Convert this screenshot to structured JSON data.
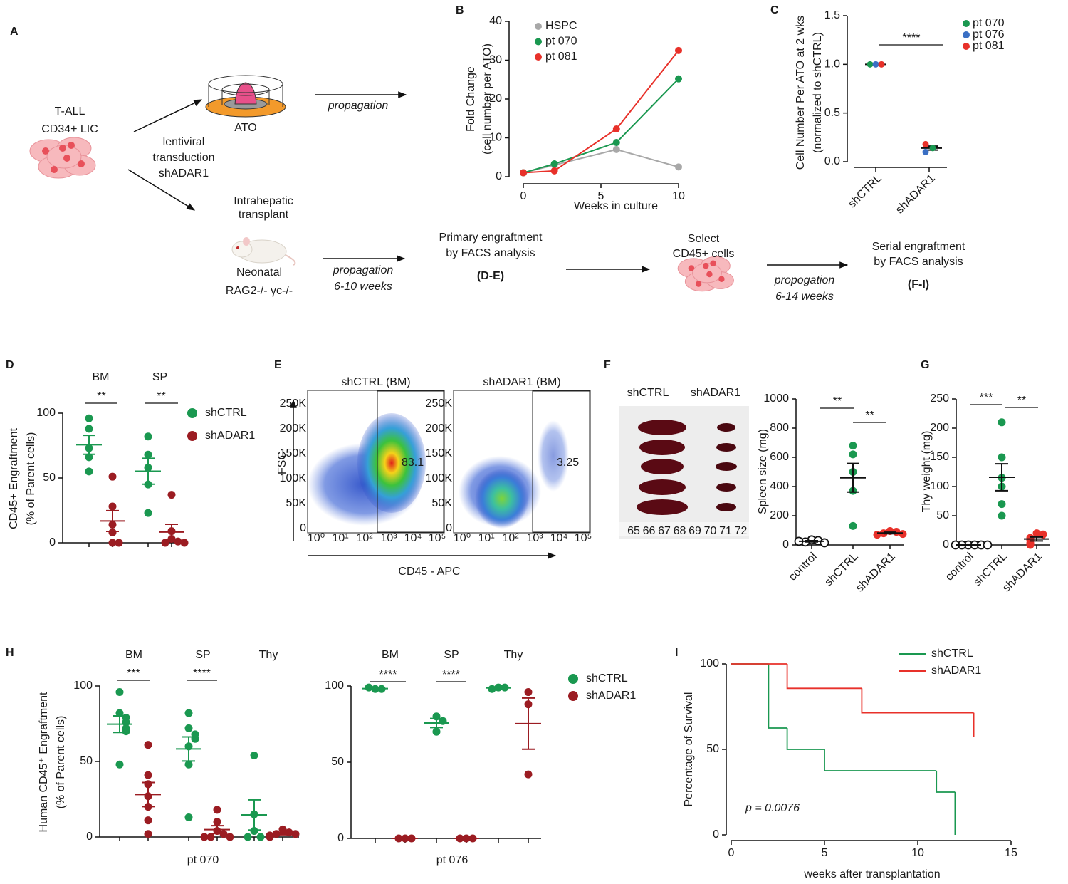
{
  "panel_labels": [
    "A",
    "B",
    "C",
    "D",
    "E",
    "F",
    "G",
    "H",
    "I"
  ],
  "diagram": {
    "start": [
      "T-ALL",
      "CD34+ LIC"
    ],
    "transduction": [
      "lentiviral",
      "transduction",
      "shADAR1"
    ],
    "ato": "ATO",
    "ato_arrow": "propagation",
    "transplant": [
      "Intrahepatic",
      "transplant"
    ],
    "mouse": [
      "Neonatal",
      "RAG2-/-  γc-/-"
    ],
    "mouse_arrow": [
      "propagation",
      "6-10 weeks"
    ],
    "primary": [
      "Primary engraftment",
      "by FACS analysis",
      "(D-E)"
    ],
    "select": [
      "Select",
      "CD45+ cells"
    ],
    "serial_arrow": [
      "propogation",
      "6-14 weeks"
    ],
    "serial": [
      "Serial engraftment",
      "by FACS analysis",
      "(F-I)"
    ]
  },
  "facs": {
    "plots": [
      {
        "title": "shCTRL (BM)",
        "gate": 83.1
      },
      {
        "title": "shADAR1 (BM)",
        "gate": 3.25
      }
    ],
    "ylabel": "FSC",
    "xlabel": "CD45 - APC",
    "yticks": [
      "250K",
      "200K",
      "150K",
      "100K",
      "50K",
      "0"
    ],
    "xticks": [
      "10⁰",
      "10¹",
      "10²",
      "10³",
      "10⁴",
      "10⁵"
    ]
  },
  "photo": {
    "labels": [
      "shCTRL",
      "shADAR1"
    ],
    "ruler": [
      "65",
      "66",
      "67",
      "68",
      "69",
      "70",
      "71",
      "72"
    ]
  },
  "chart_data": [
    {
      "type": "line",
      "xlabel": "Weeks in culture",
      "ylabel": [
        "Fold Change",
        "(cell number per ATO)"
      ],
      "x": [
        0,
        2,
        6,
        10
      ],
      "xlim": [
        0,
        10
      ],
      "xticks": [
        0,
        5,
        10
      ],
      "ylim": [
        0,
        40
      ],
      "yticks": [
        0,
        10,
        20,
        30,
        40
      ],
      "series": [
        {
          "name": "HSPC",
          "color": "#a8a8a8",
          "values": [
            1,
            3,
            7,
            2.5
          ]
        },
        {
          "name": "pt 070",
          "color": "#1a9850",
          "values": [
            1,
            3.3,
            8.8,
            25.2
          ]
        },
        {
          "name": "pt 081",
          "color": "#e8312a",
          "values": [
            1,
            1.5,
            12.3,
            32.5
          ]
        }
      ]
    },
    {
      "type": "strip",
      "ylabel": [
        "Cell Number Per ATO at 2 wks",
        "(normalized to shCTRL)"
      ],
      "categories": [
        "shCTRL",
        "shADAR1"
      ],
      "ylim": [
        0,
        1.5
      ],
      "yticks": [
        {
          "value": 0,
          "label": "0.0"
        },
        0.5,
        {
          "value": 1,
          "label": "1.0"
        },
        1.5
      ],
      "series": [
        {
          "name": "pt 070",
          "color": "#1a9850",
          "values": [
            1,
            0.14
          ]
        },
        {
          "name": "pt 076",
          "color": "#3a6fc4",
          "values": [
            1,
            0.1
          ]
        },
        {
          "name": "pt 081",
          "color": "#e8312a",
          "values": [
            1,
            0.18
          ]
        }
      ],
      "mean": [
        1,
        0.14
      ],
      "sem": [
        0,
        0.02
      ],
      "significance": [
        "****"
      ]
    },
    {
      "type": "dot",
      "ylabel": [
        "CD45+ Engraftment",
        "(% of Parent cells)"
      ],
      "categories": [
        "BM",
        "SP"
      ],
      "ylim": [
        0,
        100
      ],
      "yticks": [
        0,
        50,
        100
      ],
      "series": [
        {
          "name": "shCTRL",
          "color": "#1a9850",
          "values": [
            [
              96,
              88,
              73,
              66,
              55
            ],
            [
              82,
              68,
              58,
              45,
              23
            ]
          ],
          "mean": [
            75.6,
            55.2
          ],
          "sem": [
            7.3,
            10
          ]
        },
        {
          "name": "shADAR1",
          "color": "#9b1c22",
          "values": [
            [
              51,
              28,
              14,
              8,
              0,
              0
            ],
            [
              37,
              9,
              3,
              1,
              0,
              0
            ]
          ],
          "mean": [
            16.8,
            8.3
          ],
          "sem": [
            8,
            6
          ]
        }
      ],
      "significance": [
        "**",
        "**"
      ]
    },
    {
      "type": "dot",
      "ylabel": [
        "Spleen size (mg)"
      ],
      "categories": [
        "control",
        "shCTRL",
        "shADAR1"
      ],
      "ylim": [
        0,
        1000
      ],
      "yticks": [
        0,
        200,
        400,
        600,
        800,
        1000
      ],
      "colors": [
        "#111111",
        "#1a9850",
        "#e8312a"
      ],
      "markers": [
        "open",
        "filled",
        "filled"
      ],
      "values": [
        [
          35,
          30,
          20,
          15,
          25
        ],
        [
          680,
          620,
          500,
          370,
          130
        ],
        [
          95,
          90,
          80,
          75,
          70
        ]
      ],
      "mean": [
        25,
        460,
        82
      ],
      "sem": [
        4,
        98,
        5
      ],
      "significance": [
        "**",
        "**"
      ]
    },
    {
      "type": "dot",
      "ylabel": [
        "Thy weight (mg)"
      ],
      "categories": [
        "control",
        "shCTRL",
        "shADAR1"
      ],
      "ylim": [
        0,
        250
      ],
      "yticks": [
        0,
        50,
        100,
        150,
        200,
        250
      ],
      "colors": [
        "#111111",
        "#1a9850",
        "#e8312a"
      ],
      "markers": [
        "open",
        "filled",
        "filled"
      ],
      "values": [
        [
          0,
          0,
          0,
          0,
          0,
          0
        ],
        [
          210,
          150,
          115,
          100,
          70,
          50
        ],
        [
          20,
          18,
          12,
          8,
          3,
          0
        ]
      ],
      "mean": [
        0,
        115.8,
        10.2
      ],
      "sem": [
        0,
        23,
        3.3
      ],
      "significance": [
        "***",
        "**"
      ]
    },
    {
      "type": "dot",
      "ylabel": [
        "Human CD45⁺ Engraftment",
        "(% of Parent cells)"
      ],
      "xlabel": "pt 070",
      "categories": [
        "BM",
        "SP",
        "Thy"
      ],
      "ylim": [
        0,
        100
      ],
      "yticks": [
        0,
        50,
        100
      ],
      "series": [
        {
          "color": "#1a9850",
          "values": [
            [
              96,
              82,
              79,
              76,
              72,
              70,
              48
            ],
            [
              82,
              72,
              68,
              65,
              60,
              48,
              13
            ],
            [
              54,
              15,
              4,
              0,
              0
            ]
          ],
          "mean": [
            74.7,
            58.3,
            14.6
          ],
          "sem": [
            5.5,
            8,
            10
          ]
        },
        {
          "color": "#9b1c22",
          "values": [
            [
              61,
              41,
              35,
              27,
              20,
              11,
              2
            ],
            [
              18,
              10,
              4,
              2,
              0,
              0,
              0
            ],
            [
              5,
              3,
              2,
              2,
              1,
              0
            ]
          ],
          "mean": [
            28.1,
            4.9,
            2.2
          ],
          "sem": [
            8,
            2.6,
            0.7
          ]
        }
      ],
      "significance": [
        "***",
        "****"
      ]
    },
    {
      "type": "dot",
      "xlabel": "pt 076",
      "categories": [
        "BM",
        "SP",
        "Thy"
      ],
      "ylim": [
        0,
        100
      ],
      "yticks": [
        0,
        50,
        100
      ],
      "series": [
        {
          "name": "shCTRL",
          "color": "#1a9850",
          "values": [
            [
              98,
              98,
              99
            ],
            [
              80,
              77,
              70
            ],
            [
              99,
              99,
              98
            ]
          ],
          "mean": [
            98.3,
            75.7,
            98.7
          ],
          "sem": [
            0.3,
            3,
            0.3
          ]
        },
        {
          "name": "shADAR1",
          "color": "#9b1c22",
          "values": [
            [
              0,
              0,
              0
            ],
            [
              0,
              0,
              0
            ],
            [
              96,
              88,
              42
            ]
          ],
          "mean": [
            0,
            0,
            75.3
          ],
          "sem": [
            0,
            0,
            16.8
          ]
        }
      ],
      "significance": [
        "****",
        "****"
      ]
    },
    {
      "type": "survival",
      "xlabel": "weeks after transplantation",
      "ylabel": [
        "Percentage of Survival"
      ],
      "annotation": "p = 0.0076",
      "xlim": [
        0,
        15
      ],
      "xticks": [
        0,
        5,
        10,
        15
      ],
      "ylim": [
        0,
        100
      ],
      "yticks": [
        0,
        50,
        100
      ],
      "series": [
        {
          "name": "shCTRL",
          "color": "#1a9850",
          "x": [
            0,
            2,
            3,
            5,
            11,
            12
          ],
          "values": [
            100,
            62.5,
            50,
            37.5,
            25,
            0
          ]
        },
        {
          "name": "shADAR1",
          "color": "#e8312a",
          "x": [
            0,
            3,
            7,
            13
          ],
          "values": [
            100,
            85.7,
            71.4,
            57.1
          ]
        }
      ]
    }
  ]
}
